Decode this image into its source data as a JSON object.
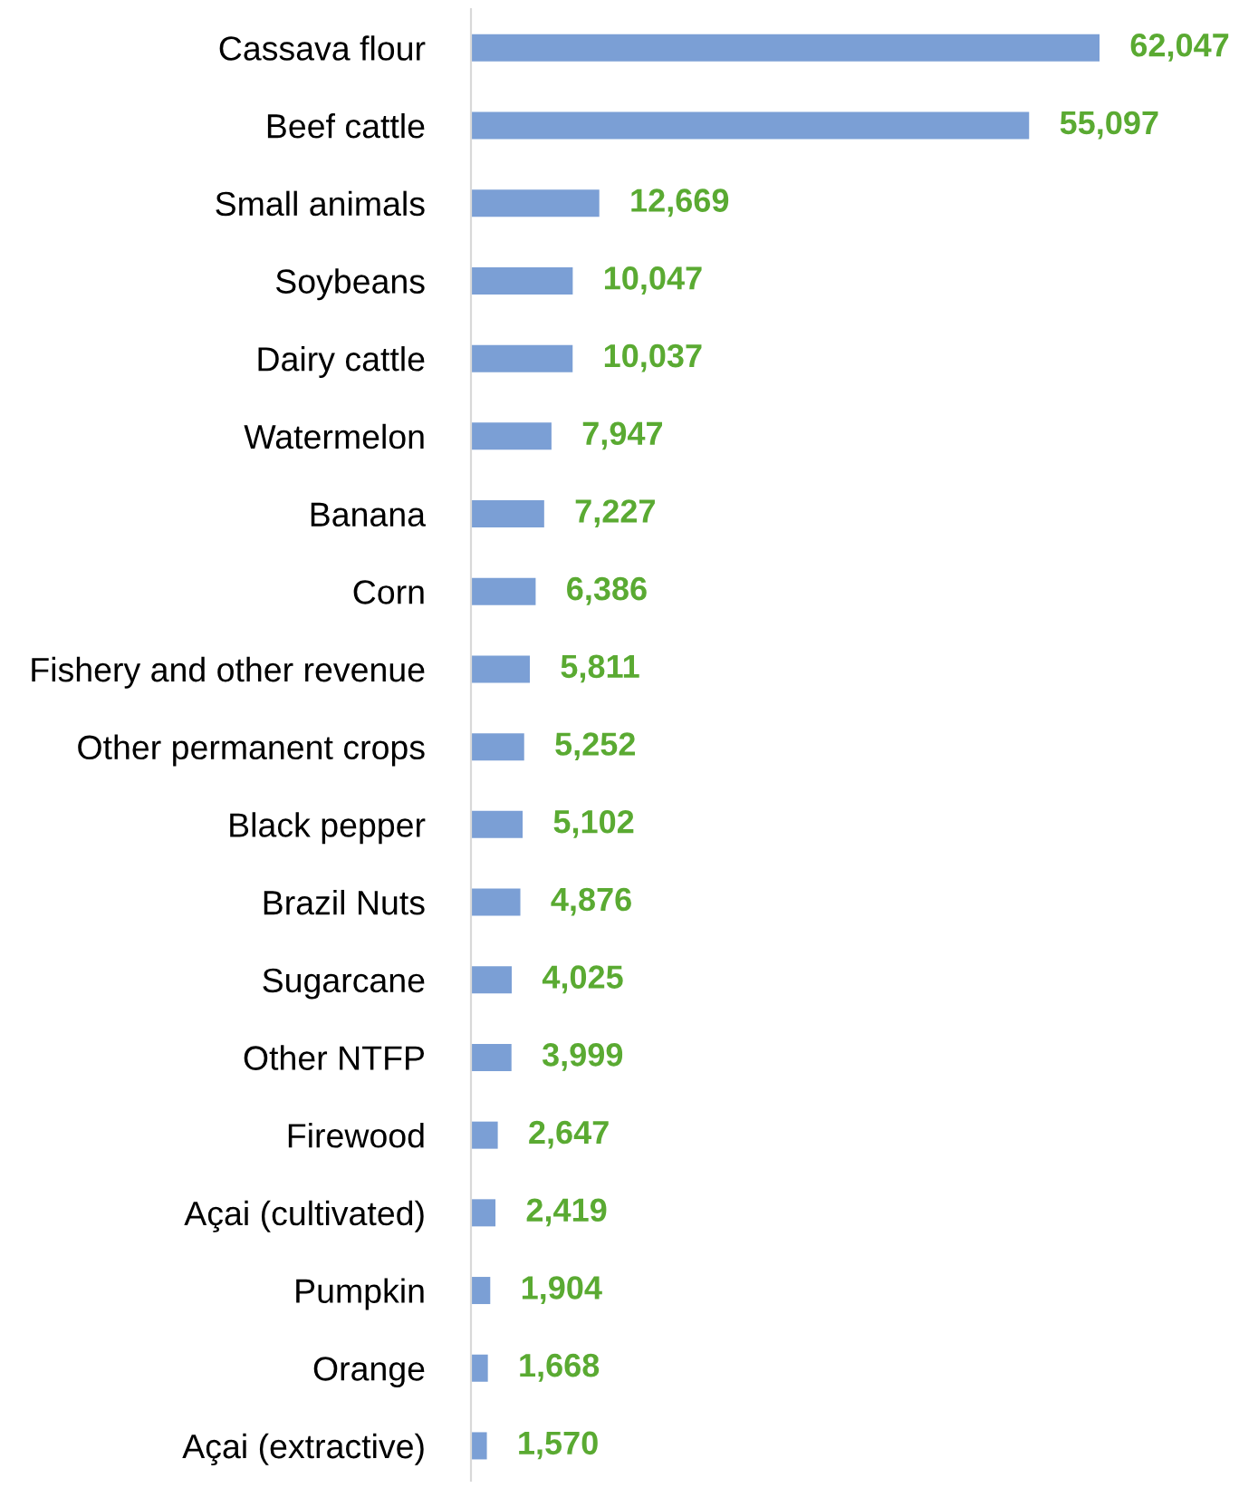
{
  "chart_data": {
    "type": "bar",
    "orientation": "horizontal",
    "categories": [
      "Cassava flour",
      "Beef cattle",
      "Small animals",
      "Soybeans",
      "Dairy cattle",
      "Watermelon",
      "Banana",
      "Corn",
      "Fishery and other revenue",
      "Other permanent crops",
      "Black pepper",
      "Brazil Nuts",
      "Sugarcane",
      "Other NTFP",
      "Firewood",
      "Açai (cultivated)",
      "Pumpkin",
      "Orange",
      "Açai (extractive)"
    ],
    "values": [
      62047,
      55097,
      12669,
      10047,
      10037,
      7947,
      7227,
      6386,
      5811,
      5252,
      5102,
      4876,
      4025,
      3999,
      2647,
      2419,
      1904,
      1668,
      1570
    ],
    "value_labels": [
      "62,047",
      "55,097",
      "12,669",
      "10,047",
      "10,037",
      "7,947",
      "7,227",
      "6,386",
      "5,811",
      "5,252",
      "5,102",
      "4,876",
      "4,025",
      "3,999",
      "2,647",
      "2,419",
      "1,904",
      "1,668",
      "1,570"
    ],
    "color": "#7b9fd5",
    "grid": false,
    "legend": false
  }
}
